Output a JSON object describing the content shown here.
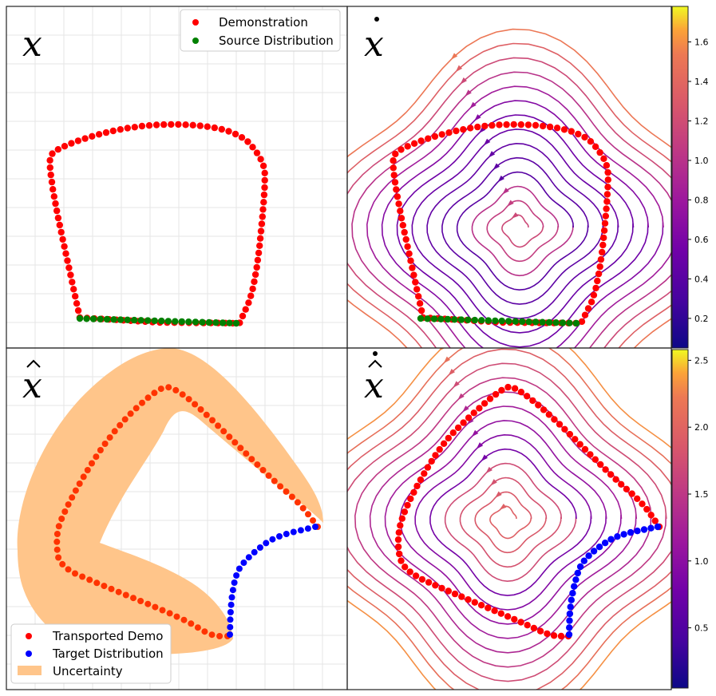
{
  "chart_data": [
    {
      "type": "scatter",
      "panel": "top-left",
      "label": "x",
      "legend_position": "top-right",
      "series": [
        {
          "name": "Demonstration",
          "color": "#ff0000",
          "shape": "closed-loop"
        },
        {
          "name": "Source Distribution",
          "color": "#008000",
          "shape": "bottom-edge"
        }
      ]
    },
    {
      "type": "streamplot",
      "panel": "top-right",
      "label": "x-dot",
      "colormap": "plasma",
      "colorbar": {
        "min": 0.05,
        "max": 1.78,
        "ticks": [
          "0.2",
          "0.4",
          "0.6",
          "0.8",
          "1.0",
          "1.2",
          "1.4",
          "1.6"
        ]
      },
      "series": [
        {
          "name": "Demonstration",
          "color": "#ff0000"
        },
        {
          "name": "Source Distribution",
          "color": "#008000"
        }
      ]
    },
    {
      "type": "scatter",
      "panel": "bottom-left",
      "label": "x-hat",
      "legend_position": "bottom-left",
      "series": [
        {
          "name": "Transported Demo",
          "color": "#ff2000"
        },
        {
          "name": "Target Distribution",
          "color": "#0000ff"
        },
        {
          "name": "Uncertainty",
          "color": "#ffc58a"
        }
      ]
    },
    {
      "type": "streamplot",
      "panel": "bottom-right",
      "label": "x-hat-dot",
      "colormap": "plasma",
      "colorbar": {
        "min": 0.05,
        "max": 2.58,
        "ticks": [
          "0.5",
          "1.0",
          "1.5",
          "2.0",
          "2.5"
        ]
      },
      "series": [
        {
          "name": "Transported Demo",
          "color": "#ff0000"
        },
        {
          "name": "Target Distribution",
          "color": "#0000ff"
        }
      ]
    }
  ],
  "legend_top": {
    "demonstration": "Demonstration",
    "source": "Source Distribution"
  },
  "legend_bottom": {
    "transported": "Transported Demo",
    "target": "Target Distribution",
    "uncertainty": "Uncertainty"
  },
  "colors": {
    "red": "#ff0000",
    "orange_red": "#ff3300",
    "green": "#008000",
    "blue": "#0000ff",
    "uncertainty": "#ffc58a"
  },
  "colorbar_top_ticks": [
    "0.2",
    "0.4",
    "0.6",
    "0.8",
    "1.0",
    "1.2",
    "1.4",
    "1.6"
  ],
  "colorbar_bottom_ticks": [
    "0.5",
    "1.0",
    "1.5",
    "2.0",
    "2.5"
  ]
}
